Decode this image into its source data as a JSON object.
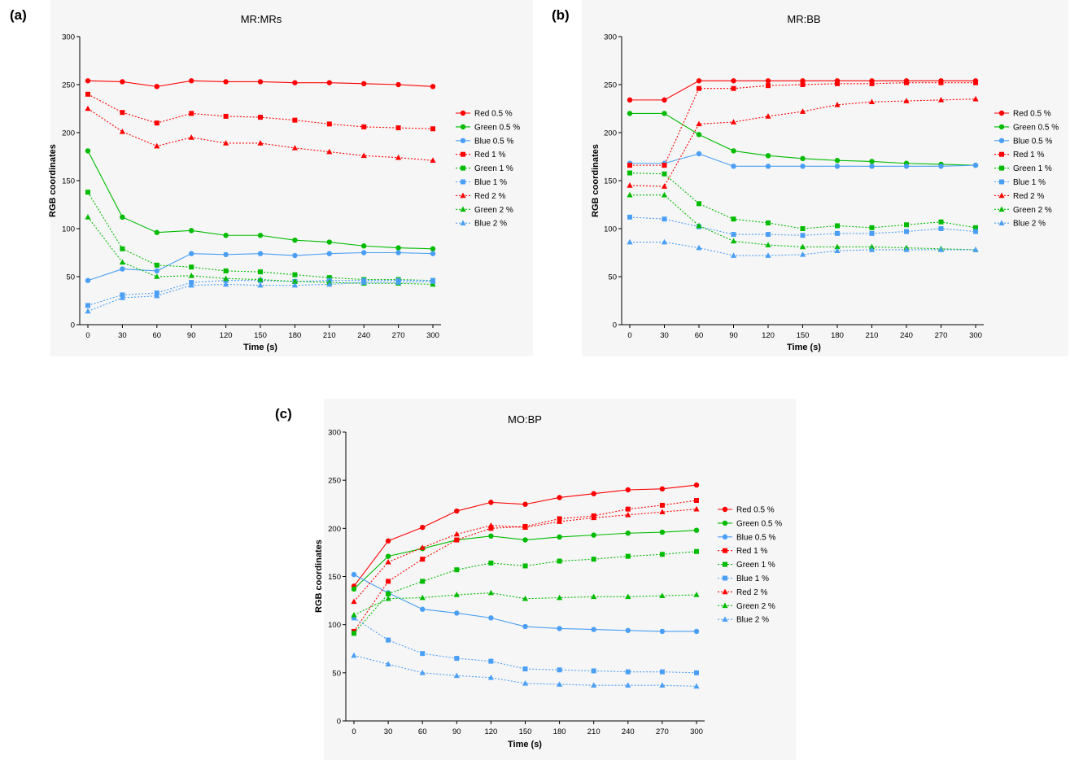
{
  "colors": {
    "red": "#ff0000",
    "green": "#00bb00",
    "blue": "#4a9ff5"
  },
  "chart_data": [
    {
      "type": "line",
      "panel_label": "(a)",
      "title": "MR:MRs",
      "xlabel": "Time (s)",
      "ylabel": "RGB coordinates",
      "x": [
        0,
        30,
        60,
        90,
        120,
        150,
        180,
        210,
        240,
        270,
        300
      ],
      "xticks": [
        "0",
        "30",
        "60",
        "90",
        "120",
        "150",
        "180",
        "210",
        "240",
        "270",
        "300"
      ],
      "ylim": [
        0,
        300
      ],
      "yticks": [
        "0",
        "50",
        "100",
        "150",
        "200",
        "250",
        "300"
      ],
      "legend_position": "right",
      "series": [
        {
          "name": "Red 0.5 %",
          "color": "red",
          "marker": "circle",
          "dash": "solid",
          "values": [
            254,
            253,
            248,
            254,
            253,
            253,
            252,
            252,
            251,
            250,
            248
          ]
        },
        {
          "name": "Green 0.5 %",
          "color": "green",
          "marker": "circle",
          "dash": "solid",
          "values": [
            181,
            112,
            96,
            98,
            93,
            93,
            88,
            86,
            82,
            80,
            79
          ]
        },
        {
          "name": "Blue 0.5 %",
          "color": "blue",
          "marker": "circle",
          "dash": "solid",
          "values": [
            46,
            58,
            56,
            74,
            73,
            74,
            72,
            74,
            75,
            75,
            74
          ]
        },
        {
          "name": "Red 1 %",
          "color": "red",
          "marker": "square",
          "dash": "dotted",
          "values": [
            240,
            221,
            210,
            220,
            217,
            216,
            213,
            209,
            206,
            205,
            204
          ]
        },
        {
          "name": "Green 1 %",
          "color": "green",
          "marker": "square",
          "dash": "dotted",
          "values": [
            138,
            79,
            62,
            60,
            56,
            55,
            52,
            49,
            47,
            47,
            46
          ]
        },
        {
          "name": "Blue 1 %",
          "color": "blue",
          "marker": "square",
          "dash": "dotted",
          "values": [
            20,
            31,
            33,
            44,
            46,
            46,
            45,
            46,
            46,
            46,
            46
          ]
        },
        {
          "name": "Red 2 %",
          "color": "red",
          "marker": "triangle",
          "dash": "dotted",
          "values": [
            225,
            201,
            186,
            195,
            189,
            189,
            184,
            180,
            176,
            174,
            171
          ]
        },
        {
          "name": "Green 2 %",
          "color": "green",
          "marker": "triangle",
          "dash": "dotted",
          "values": [
            112,
            65,
            50,
            51,
            48,
            47,
            45,
            44,
            43,
            43,
            42
          ]
        },
        {
          "name": "Blue 2 %",
          "color": "blue",
          "marker": "triangle",
          "dash": "dotted",
          "values": [
            14,
            28,
            30,
            41,
            42,
            41,
            41,
            42,
            44,
            44,
            45
          ]
        }
      ]
    },
    {
      "type": "line",
      "panel_label": "(b)",
      "title": "MR:BB",
      "xlabel": "Time (s)",
      "ylabel": "RGB coordinates",
      "x": [
        0,
        30,
        60,
        90,
        120,
        150,
        180,
        210,
        240,
        270,
        300
      ],
      "xticks": [
        "0",
        "30",
        "60",
        "90",
        "120",
        "150",
        "180",
        "210",
        "240",
        "270",
        "300"
      ],
      "ylim": [
        0,
        300
      ],
      "yticks": [
        "0",
        "50",
        "100",
        "150",
        "200",
        "250",
        "300"
      ],
      "legend_position": "right",
      "series": [
        {
          "name": "Red 0.5 %",
          "color": "red",
          "marker": "circle",
          "dash": "solid",
          "values": [
            234,
            234,
            254,
            254,
            254,
            254,
            254,
            254,
            254,
            254,
            254
          ]
        },
        {
          "name": "Green 0.5 %",
          "color": "green",
          "marker": "circle",
          "dash": "solid",
          "values": [
            220,
            220,
            198,
            181,
            176,
            173,
            171,
            170,
            168,
            167,
            166
          ]
        },
        {
          "name": "Blue 0.5 %",
          "color": "blue",
          "marker": "circle",
          "dash": "solid",
          "values": [
            168,
            168,
            178,
            165,
            165,
            165,
            165,
            165,
            165,
            165,
            166
          ]
        },
        {
          "name": "Red 1 %",
          "color": "red",
          "marker": "square",
          "dash": "dotted",
          "values": [
            166,
            166,
            246,
            246,
            249,
            250,
            251,
            251,
            252,
            252,
            252
          ]
        },
        {
          "name": "Green 1 %",
          "color": "green",
          "marker": "square",
          "dash": "dotted",
          "values": [
            158,
            157,
            126,
            110,
            106,
            100,
            103,
            101,
            104,
            107,
            101
          ]
        },
        {
          "name": "Blue 1 %",
          "color": "blue",
          "marker": "square",
          "dash": "dotted",
          "values": [
            112,
            110,
            102,
            94,
            94,
            93,
            95,
            95,
            97,
            100,
            97
          ]
        },
        {
          "name": "Red 2 %",
          "color": "red",
          "marker": "triangle",
          "dash": "dotted",
          "values": [
            145,
            144,
            209,
            211,
            217,
            222,
            229,
            232,
            233,
            234,
            235
          ]
        },
        {
          "name": "Green 2 %",
          "color": "green",
          "marker": "triangle",
          "dash": "dotted",
          "values": [
            135,
            135,
            103,
            87,
            83,
            81,
            81,
            81,
            80,
            79,
            78
          ]
        },
        {
          "name": "Blue 2 %",
          "color": "blue",
          "marker": "triangle",
          "dash": "dotted",
          "values": [
            86,
            86,
            80,
            72,
            72,
            73,
            77,
            78,
            78,
            78,
            78
          ]
        }
      ]
    },
    {
      "type": "line",
      "panel_label": "(c)",
      "title": "MO:BP",
      "xlabel": "Time (s)",
      "ylabel": "RGB coordinates",
      "x": [
        0,
        30,
        60,
        90,
        120,
        150,
        180,
        210,
        240,
        270,
        300
      ],
      "xticks": [
        "0",
        "30",
        "60",
        "90",
        "120",
        "150",
        "180",
        "210",
        "240",
        "270",
        "300"
      ],
      "ylim": [
        0,
        300
      ],
      "yticks": [
        "0",
        "50",
        "100",
        "150",
        "200",
        "250",
        "300"
      ],
      "legend_position": "right",
      "series": [
        {
          "name": "Red 0.5 %",
          "color": "red",
          "marker": "circle",
          "dash": "solid",
          "values": [
            140,
            187,
            201,
            218,
            227,
            225,
            232,
            236,
            240,
            241,
            245
          ]
        },
        {
          "name": "Green 0.5 %",
          "color": "green",
          "marker": "circle",
          "dash": "solid",
          "values": [
            137,
            171,
            179,
            188,
            192,
            188,
            191,
            193,
            195,
            196,
            198
          ]
        },
        {
          "name": "Blue 0.5 %",
          "color": "blue",
          "marker": "circle",
          "dash": "solid",
          "values": [
            152,
            133,
            116,
            112,
            107,
            98,
            96,
            95,
            94,
            93,
            93
          ]
        },
        {
          "name": "Red 1 %",
          "color": "red",
          "marker": "square",
          "dash": "dotted",
          "values": [
            93,
            145,
            168,
            188,
            200,
            202,
            210,
            213,
            220,
            224,
            229
          ]
        },
        {
          "name": "Green 1 %",
          "color": "green",
          "marker": "square",
          "dash": "dotted",
          "values": [
            91,
            132,
            145,
            157,
            164,
            161,
            166,
            168,
            171,
            173,
            176
          ]
        },
        {
          "name": "Blue 1 %",
          "color": "blue",
          "marker": "square",
          "dash": "dotted",
          "values": [
            107,
            84,
            70,
            65,
            62,
            54,
            53,
            52,
            51,
            51,
            50
          ]
        },
        {
          "name": "Red 2 %",
          "color": "red",
          "marker": "triangle",
          "dash": "dotted",
          "values": [
            124,
            165,
            180,
            194,
            203,
            201,
            207,
            211,
            214,
            217,
            220
          ]
        },
        {
          "name": "Green 2 %",
          "color": "green",
          "marker": "triangle",
          "dash": "dotted",
          "values": [
            110,
            127,
            128,
            131,
            133,
            127,
            128,
            129,
            129,
            130,
            131
          ]
        },
        {
          "name": "Blue 2 %",
          "color": "blue",
          "marker": "triangle",
          "dash": "dotted",
          "values": [
            68,
            59,
            50,
            47,
            45,
            39,
            38,
            37,
            37,
            37,
            36
          ]
        }
      ]
    }
  ]
}
